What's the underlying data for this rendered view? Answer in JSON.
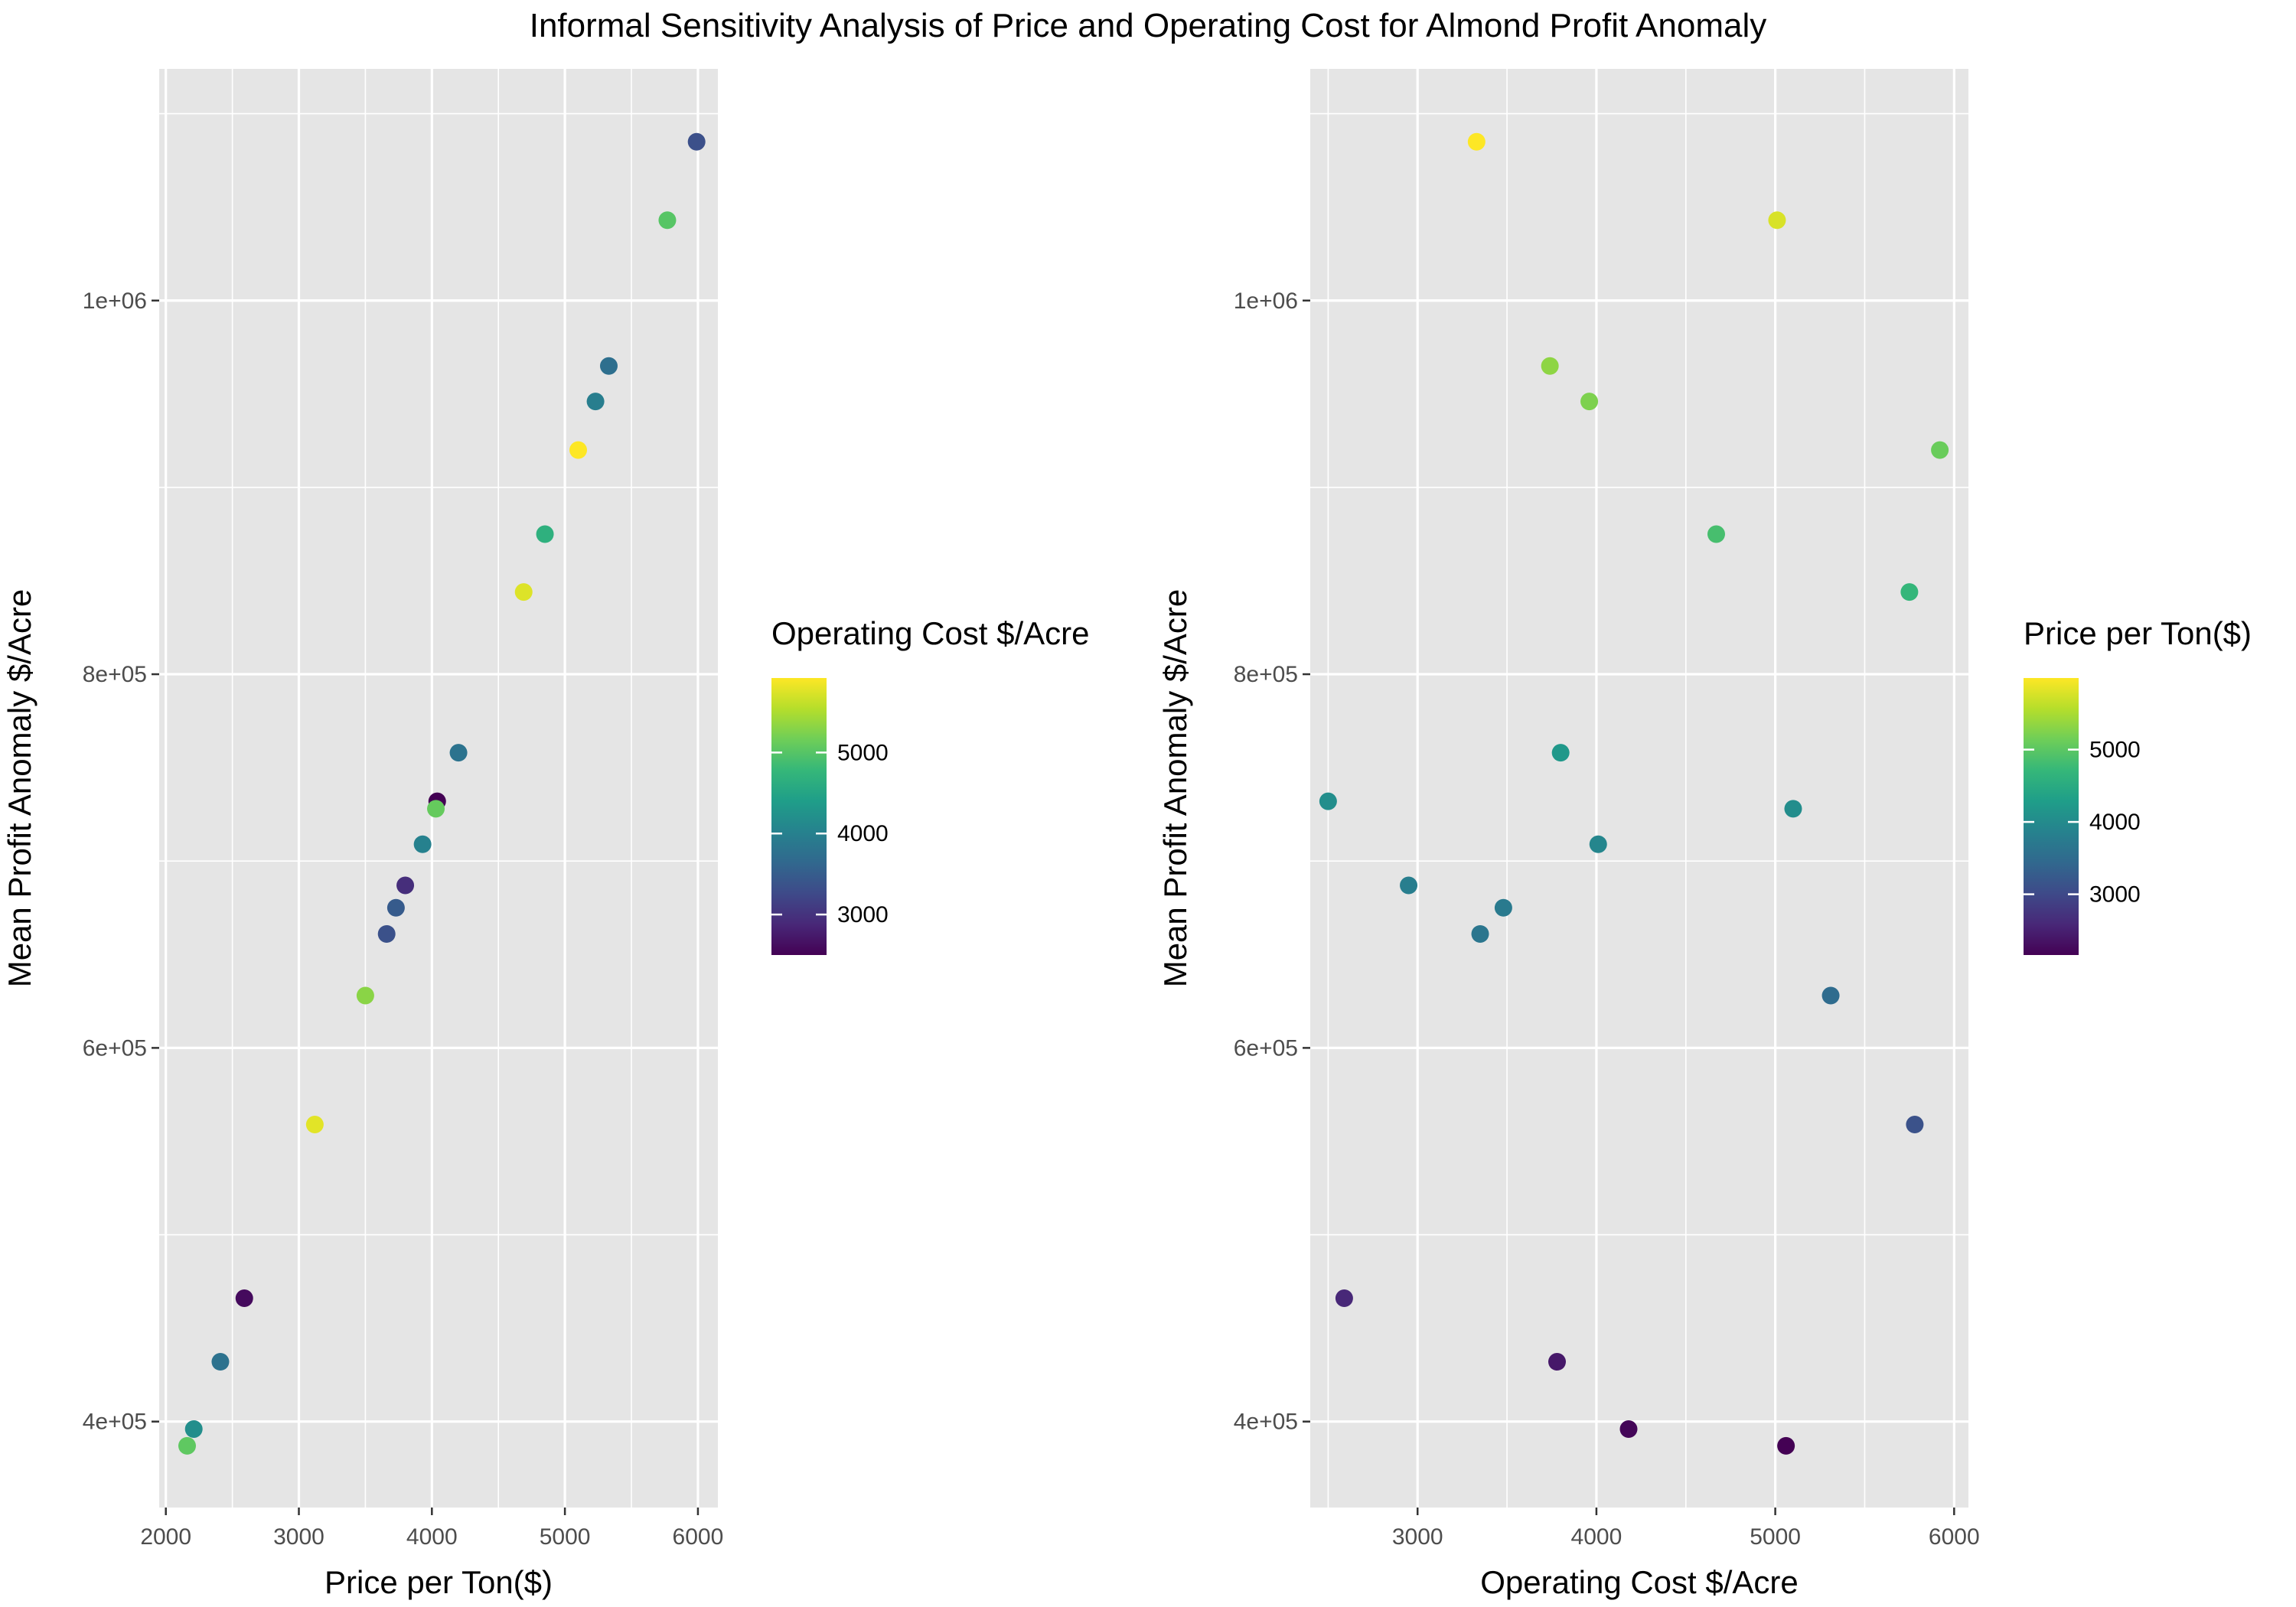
{
  "figure": {
    "title": "Informal Sensitivity Analysis of Price and Operating Cost for Almond Profit Anomaly"
  },
  "colorscale": {
    "name": "viridis",
    "stops": [
      "#440154",
      "#482878",
      "#3e4a89",
      "#31688e",
      "#26828e",
      "#1f9e89",
      "#35b779",
      "#6ece58",
      "#b5de2b",
      "#fde725"
    ]
  },
  "chart_data": [
    {
      "type": "scatter",
      "title": "",
      "xlabel": "Price per Ton($)",
      "ylabel": "Mean Profit Anomaly $/Acre",
      "xlim": [
        1950,
        6150
      ],
      "ylim": [
        354000,
        1124000
      ],
      "x_ticks": [
        2000,
        3000,
        4000,
        5000,
        6000
      ],
      "x_tick_labels": [
        "2000",
        "3000",
        "4000",
        "5000",
        "6000"
      ],
      "y_ticks": [
        400000,
        600000,
        800000,
        1000000
      ],
      "y_tick_labels": [
        "4e+05",
        "6e+05",
        "8e+05",
        "1e+06"
      ],
      "grid": true,
      "legend": {
        "title": "Operating Cost $/Acre",
        "placement": "right",
        "range": [
          2500,
          5920
        ],
        "ticks": [
          3000,
          4000,
          5000
        ],
        "tick_labels": [
          "3000",
          "4000",
          "5000"
        ]
      },
      "points": [
        {
          "x": 2160,
          "y": 387000,
          "color": 5060
        },
        {
          "x": 2210,
          "y": 396000,
          "color": 4180
        },
        {
          "x": 2410,
          "y": 432000,
          "color": 3780
        },
        {
          "x": 2590,
          "y": 466000,
          "color": 2590
        },
        {
          "x": 3120,
          "y": 559000,
          "color": 5780
        },
        {
          "x": 3500,
          "y": 628000,
          "color": 5310
        },
        {
          "x": 3660,
          "y": 661000,
          "color": 3350
        },
        {
          "x": 3730,
          "y": 675000,
          "color": 3480
        },
        {
          "x": 3800,
          "y": 687000,
          "color": 2950
        },
        {
          "x": 3930,
          "y": 709000,
          "color": 4010
        },
        {
          "x": 4040,
          "y": 732000,
          "color": 2500
        },
        {
          "x": 4030,
          "y": 728000,
          "color": 5100
        },
        {
          "x": 4200,
          "y": 758000,
          "color": 3800
        },
        {
          "x": 4690,
          "y": 844000,
          "color": 5750
        },
        {
          "x": 4850,
          "y": 875000,
          "color": 4670
        },
        {
          "x": 5100,
          "y": 920000,
          "color": 5920
        },
        {
          "x": 5230,
          "y": 946000,
          "color": 3960
        },
        {
          "x": 5330,
          "y": 965000,
          "color": 3740
        },
        {
          "x": 5770,
          "y": 1043000,
          "color": 5010
        },
        {
          "x": 5990,
          "y": 1085000,
          "color": 3330
        }
      ]
    },
    {
      "type": "scatter",
      "title": "",
      "xlabel": "Operating Cost $/Acre",
      "ylabel": "Mean Profit Anomaly $/Acre",
      "xlim": [
        2400,
        6080
      ],
      "ylim": [
        354000,
        1124000
      ],
      "x_ticks": [
        3000,
        4000,
        5000,
        6000
      ],
      "x_tick_labels": [
        "3000",
        "4000",
        "5000",
        "6000"
      ],
      "y_ticks": [
        400000,
        600000,
        800000,
        1000000
      ],
      "y_tick_labels": [
        "4e+05",
        "6e+05",
        "8e+05",
        "1e+06"
      ],
      "grid": true,
      "legend": {
        "title": "Price per Ton($)",
        "placement": "right",
        "range": [
          2160,
          5990
        ],
        "ticks": [
          3000,
          4000,
          5000
        ],
        "tick_labels": [
          "3000",
          "4000",
          "5000"
        ]
      },
      "points": [
        {
          "x": 5060,
          "y": 387000,
          "color": 2160
        },
        {
          "x": 4180,
          "y": 396000,
          "color": 2210
        },
        {
          "x": 3780,
          "y": 432000,
          "color": 2410
        },
        {
          "x": 2590,
          "y": 466000,
          "color": 2590
        },
        {
          "x": 5780,
          "y": 559000,
          "color": 3120
        },
        {
          "x": 5310,
          "y": 628000,
          "color": 3500
        },
        {
          "x": 3350,
          "y": 661000,
          "color": 3660
        },
        {
          "x": 3480,
          "y": 675000,
          "color": 3730
        },
        {
          "x": 2950,
          "y": 687000,
          "color": 3800
        },
        {
          "x": 4010,
          "y": 709000,
          "color": 3930
        },
        {
          "x": 2500,
          "y": 732000,
          "color": 4040
        },
        {
          "x": 5100,
          "y": 728000,
          "color": 4030
        },
        {
          "x": 3800,
          "y": 758000,
          "color": 4200
        },
        {
          "x": 5750,
          "y": 844000,
          "color": 4690
        },
        {
          "x": 4670,
          "y": 875000,
          "color": 4850
        },
        {
          "x": 5920,
          "y": 920000,
          "color": 5100
        },
        {
          "x": 3960,
          "y": 946000,
          "color": 5230
        },
        {
          "x": 3740,
          "y": 965000,
          "color": 5330
        },
        {
          "x": 5010,
          "y": 1043000,
          "color": 5770
        },
        {
          "x": 3330,
          "y": 1085000,
          "color": 5990
        }
      ]
    }
  ]
}
